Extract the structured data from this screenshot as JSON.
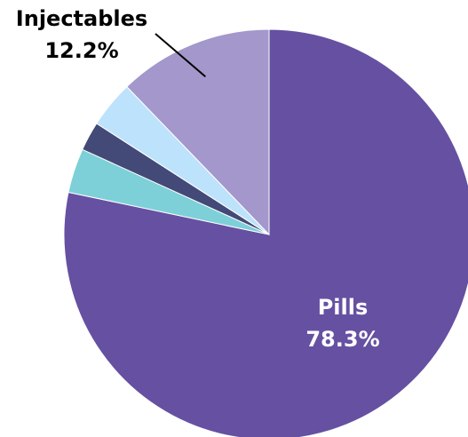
{
  "chart_data": {
    "type": "pie",
    "start_angle_deg": 90,
    "direction": "clockwise",
    "slices": [
      {
        "name": "Pills",
        "value": 78.3,
        "value_label": "78.3%",
        "color": "#6650a2",
        "label_placement": "inside",
        "label_color": "#ffffff"
      },
      {
        "name": "",
        "value": 3.5,
        "value_label": "",
        "color": "#7dd0d8",
        "label_placement": "none"
      },
      {
        "name": "",
        "value": 2.3,
        "value_label": "",
        "color": "#434a78",
        "label_placement": "none"
      },
      {
        "name": "",
        "value": 3.7,
        "value_label": "",
        "color": "#bde2fb",
        "label_placement": "none"
      },
      {
        "name": "Injectables",
        "value": 12.2,
        "value_label": "12.2%",
        "color": "#a397cb",
        "label_placement": "outside",
        "label_color": "#000000"
      }
    ]
  }
}
